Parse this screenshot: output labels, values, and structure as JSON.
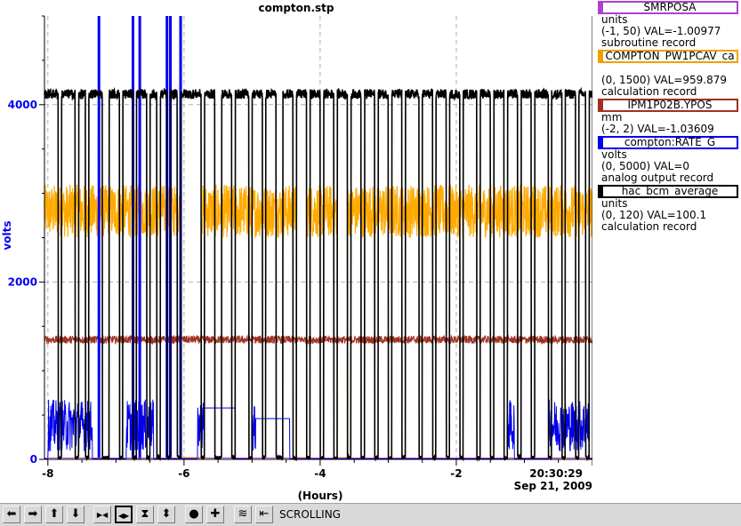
{
  "window": {
    "title": "compton.stp"
  },
  "legend": [
    {
      "name": "SMRPOSA",
      "color": "#b040d0",
      "lines": [
        "units",
        "(-1, 50) VAL=-1.00977",
        "subroutine record"
      ]
    },
    {
      "name": "COMPTON_PW1PCAV_ca",
      "color": "#f0a000",
      "lines": [
        "",
        "(0, 1500) VAL=959.879",
        "calculation record"
      ]
    },
    {
      "name": "IPM1P02B.YPOS",
      "color": "#a03020",
      "lines": [
        "mm",
        "(-2, 2) VAL=-1.03609"
      ]
    },
    {
      "name": "compton:RATE_G",
      "color": "#0000ee",
      "lines": [
        "volts",
        "(0, 5000) VAL=0",
        "analog output record"
      ]
    },
    {
      "name": "hac_bcm_average",
      "color": "#000000",
      "lines": [
        "units",
        "(0, 120) VAL=100.1",
        "calculation record"
      ]
    }
  ],
  "toolbar": {
    "buttons": [
      {
        "icon": "arrow-left-icon",
        "glyph": "⬅"
      },
      {
        "icon": "arrow-right-icon",
        "glyph": "➡"
      },
      {
        "icon": "arrow-up-icon",
        "glyph": "⬆"
      },
      {
        "icon": "arrow-down-icon",
        "glyph": "⬇"
      },
      {
        "icon": "zoom-in-horizontal-icon",
        "glyph": "▶◀"
      },
      {
        "icon": "zoom-out-horizontal-icon",
        "glyph": "◀▶",
        "active": true
      },
      {
        "icon": "zoom-in-vertical-icon",
        "glyph": "⧗"
      },
      {
        "icon": "zoom-out-vertical-icon",
        "glyph": "⬍"
      },
      {
        "icon": "circle-icon",
        "glyph": "●"
      },
      {
        "icon": "plus-icon",
        "glyph": "✚"
      },
      {
        "icon": "autoscale-icon",
        "glyph": "≋"
      },
      {
        "icon": "reset-icon",
        "glyph": "⇤"
      }
    ],
    "status": "SCROLLING"
  },
  "chart_data": {
    "type": "line",
    "title": "compton.stp",
    "xlabel": "(Hours)",
    "ylabel": "volts",
    "xlim": [
      -8.05,
      0
    ],
    "ylim": [
      0,
      5000
    ],
    "x_ticks": [
      -8,
      -6,
      -4,
      -2
    ],
    "x_tick_labels": [
      "-8",
      "-6",
      "-4",
      "-2"
    ],
    "y_ticks": [
      0,
      2000,
      4000
    ],
    "y_tick_labels": [
      "0",
      "2000",
      "4000"
    ],
    "end_time": "20:30:29",
    "end_date": "Sep 21, 2009",
    "grid": true,
    "series": [
      {
        "name": "hac_bcm_average",
        "color": "#000000",
        "level": 4120,
        "dropout_level": 0,
        "dropouts": [
          [
            -7.85,
            -7.8
          ],
          [
            -7.6,
            -7.55
          ],
          [
            -7.45,
            -7.4
          ],
          [
            -7.2,
            -7.1
          ],
          [
            -6.95,
            -6.9
          ],
          [
            -6.75,
            -6.7
          ],
          [
            -6.55,
            -6.5
          ],
          [
            -6.4,
            -6.35
          ],
          [
            -6.25,
            -6.2
          ],
          [
            -6.1,
            -6.05
          ],
          [
            -5.75,
            -5.7
          ],
          [
            -5.55,
            -5.45
          ],
          [
            -5.3,
            -5.25
          ],
          [
            -5.05,
            -5.0
          ],
          [
            -4.85,
            -4.8
          ],
          [
            -4.65,
            -4.55
          ],
          [
            -4.4,
            -4.35
          ],
          [
            -4.2,
            -4.15
          ],
          [
            -4.0,
            -3.95
          ],
          [
            -3.8,
            -3.75
          ],
          [
            -3.6,
            -3.55
          ],
          [
            -3.4,
            -3.35
          ],
          [
            -3.2,
            -3.15
          ],
          [
            -3.0,
            -2.95
          ],
          [
            -2.8,
            -2.75
          ],
          [
            -2.55,
            -2.5
          ],
          [
            -2.35,
            -2.3
          ],
          [
            -2.15,
            -2.1
          ],
          [
            -1.95,
            -1.9
          ],
          [
            -1.7,
            -1.65
          ],
          [
            -1.5,
            -1.45
          ],
          [
            -1.3,
            -1.25
          ],
          [
            -1.1,
            -1.05
          ],
          [
            -0.9,
            -0.85
          ],
          [
            -0.65,
            -0.6
          ],
          [
            -0.45,
            -0.4
          ],
          [
            -0.25,
            -0.2
          ],
          [
            -0.1,
            -0.05
          ]
        ]
      },
      {
        "name": "COMPTON_PW1PCAV_ca",
        "color": "#ffaa00",
        "level": 3100,
        "low": 2500,
        "gaps": [
          [
            -6.05,
            -5.75
          ],
          [
            -4.35,
            -4.2
          ],
          [
            -3.75,
            -3.6
          ]
        ]
      },
      {
        "name": "IPM1P02B.YPOS",
        "color": "#a03020",
        "level": 1350
      },
      {
        "name": "compton:RATE_G",
        "color": "#0000ee",
        "level": 450,
        "active_ranges": [
          [
            -8.0,
            -7.35
          ],
          [
            -6.85,
            -6.45
          ],
          [
            -5.8,
            -5.5
          ],
          [
            -5.0,
            -4.9
          ],
          [
            -1.25,
            -1.15
          ],
          [
            -0.65,
            -0.05
          ]
        ],
        "spikes": [
          -7.25,
          -6.75,
          -6.65,
          -6.25,
          -6.2,
          -6.05
        ]
      },
      {
        "name": "SMRPOSA",
        "color": "#b040d0",
        "level": 5
      }
    ]
  }
}
